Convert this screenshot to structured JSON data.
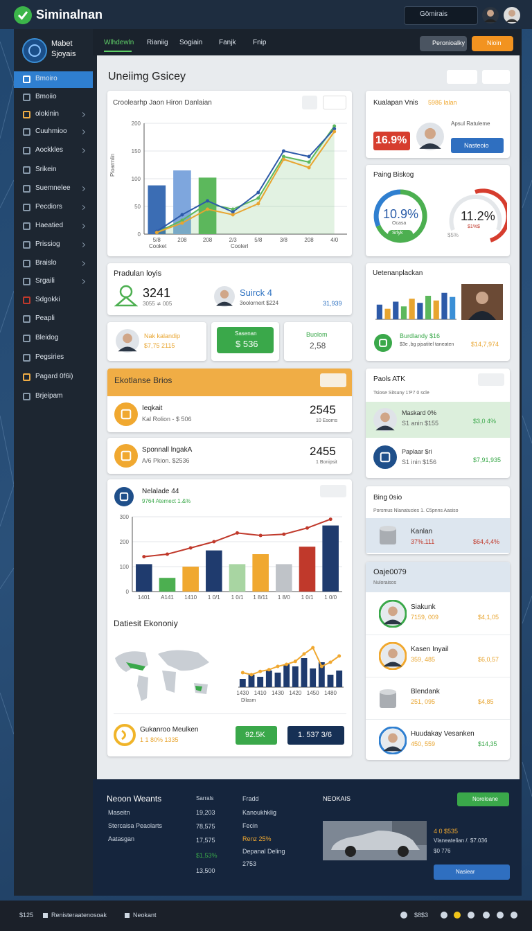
{
  "header": {
    "title": "Siminalnan",
    "search": "Gömirais"
  },
  "sidebar": {
    "brand_line1": "Mabet",
    "brand_line2": "Sjoyais",
    "items": [
      "Bmoiro",
      "Bmoiio",
      "olokinin",
      "Cuuhmioo",
      "Aockkles",
      "Srikein",
      "Suemnelee",
      "Pecdiors",
      "Haeatied",
      "Prissiog",
      "Braislo",
      "Srgaili",
      "Sdgokki",
      "Peapli",
      "Bleidog",
      "Pegsiries",
      "Pagard 0f6i)",
      "Brjeipam"
    ]
  },
  "nav": {
    "tabs": [
      "Wlhdewln",
      "Rianiig",
      "Sogiain",
      "Fanjk",
      "Fnip"
    ],
    "button_secondary": "Peronioalky",
    "button_primary": "Nioin"
  },
  "page_title": "Uneiimg Gsicey",
  "main_chart": {
    "type": "bar-line",
    "title": "Croolearhp Jaon Hiron Danlaian",
    "y_label": "Ploarmlin",
    "x_notes": [
      "Cooket",
      "Coolerl"
    ],
    "categories": [
      "5/8",
      "208",
      "208",
      "2/3",
      "5/8",
      "3/8",
      "208",
      "4/0"
    ],
    "ylim": [
      0,
      200
    ],
    "yticks": [
      0,
      50,
      100,
      150,
      200
    ],
    "grid": true,
    "series": [
      {
        "type": "bar",
        "colors": [
          "#3b6db4",
          "#7ea6dd",
          "#5cb85c",
          null,
          null,
          null,
          null,
          null
        ],
        "values": [
          88,
          115,
          102,
          null,
          null,
          null,
          null,
          null
        ]
      },
      {
        "type": "line",
        "color": "#5cb85c",
        "area": true,
        "values": [
          3,
          25,
          55,
          45,
          65,
          140,
          130,
          195
        ]
      },
      {
        "type": "line",
        "color": "#2d5aa8",
        "values": [
          5,
          35,
          60,
          40,
          75,
          150,
          140,
          190
        ]
      },
      {
        "type": "line",
        "color": "#e8a530",
        "values": [
          3,
          20,
          45,
          35,
          55,
          135,
          120,
          185
        ]
      }
    ]
  },
  "right_card1": {
    "title": "Kualapan Vnis",
    "highlight": "5986 lalan",
    "badge": "16.9%",
    "note": "Apsul Ratuleme",
    "button": "Nasteoio"
  },
  "gauges_card": {
    "title": "Paing Biskog",
    "gauge1": {
      "value_text": "10.9%",
      "sub": "Ocasa",
      "foot": "Srlyk"
    },
    "gauge2": {
      "value_text": "11.2%",
      "sub": "$1%$",
      "foot": "$5%"
    }
  },
  "production": {
    "title": "Pradulan loyis",
    "count": "3241",
    "count_sub": "3055 ≭ 005",
    "person": "Suirck 4",
    "person_sub": "3oolornert $224",
    "total": "31,939"
  },
  "mini_cards": {
    "first": {
      "name": "Nak kalandip",
      "value": "$7,75 2115"
    },
    "second": {
      "label": "Sasenan",
      "value": "$ 536"
    },
    "third": {
      "label": "Buolom",
      "value": "2,58"
    }
  },
  "team_card": {
    "title": "Uetenanplackan",
    "chart": {
      "type": "bar",
      "ylim": [
        0,
        60
      ],
      "series": [
        {
          "type": "bar",
          "colors": [
            "#2d5aa8",
            "#e8a530",
            "#2d5aa8",
            "#5cb85c",
            "#e8a530",
            "#2d5aa8",
            "#5cb85c",
            "#e8a530",
            "#2d5aa8",
            "#3b8fd6"
          ],
          "values": [
            25,
            18,
            30,
            22,
            35,
            28,
            40,
            32,
            45,
            38
          ]
        }
      ]
    },
    "item": "Burdlandy $16",
    "item_sub": "$3e ,bg pjsatitel taneaten",
    "amount": "$14,7,974"
  },
  "economy": {
    "title": "Ekotlanse Brios",
    "rows": [
      {
        "name": "Ieqkait",
        "sub": "Kal Rolion - $ 506",
        "value": "2545",
        "value_sub": "10 Esoms"
      },
      {
        "name": "Sponnall lngakA",
        "sub": "A/6 Pkion. $2536",
        "value": "2455",
        "value_sub": "1 Bonipsit"
      }
    ]
  },
  "pools": {
    "title": "Paols ATK",
    "sub": "Tsiose Sitsuny  1'P7 0 scle",
    "rows": [
      {
        "name": "Maskard 0%",
        "sub": "S1 anin $155",
        "value": "$3,0 4%"
      },
      {
        "name": "Paplaar $ri",
        "sub": "S1 inin $156",
        "value": "$7,91,935"
      }
    ]
  },
  "chart2": {
    "type": "bar-line",
    "title": "Nelalade 44",
    "subtitle": "9764 Atemect 1.&%",
    "categories": [
      "1401",
      "A141",
      "1410",
      "1 0/1",
      "1 0/1",
      "1 8/11",
      "1 8/0",
      "1 0/1",
      "1 0/0"
    ],
    "ylim": [
      0,
      300
    ],
    "yticks": [
      0,
      100,
      200,
      300
    ],
    "grid": true,
    "series": [
      {
        "type": "bar",
        "colors": [
          "#1f3b6e",
          "#4caf50",
          "#f0a830",
          "#1f3b6e",
          "#a8d5a2",
          "#f0a830",
          "#bfc3c8",
          "#c0392b",
          "#1f3b6e"
        ],
        "values": [
          110,
          55,
          100,
          165,
          110,
          150,
          110,
          180,
          265
        ]
      },
      {
        "type": "line",
        "color": "#c0392b",
        "markers": true,
        "values": [
          140,
          150,
          175,
          200,
          235,
          225,
          230,
          255,
          290
        ]
      }
    ]
  },
  "dataset": {
    "title": "Datiesit Ekononiy",
    "map_note": "Dllasm",
    "chart": {
      "type": "bar-line",
      "categories": [
        "1430",
        null,
        "1410",
        null,
        "1430",
        null,
        "1420",
        null,
        "1450",
        null,
        "1480",
        null
      ],
      "ylim": [
        0,
        100
      ],
      "series": [
        {
          "type": "bar",
          "color": "#1f3b6e",
          "values": [
            20,
            30,
            25,
            40,
            35,
            55,
            50,
            70,
            45,
            60,
            30,
            40
          ]
        },
        {
          "type": "line",
          "color": "#f0a830",
          "markers": true,
          "values": [
            35,
            30,
            38,
            42,
            50,
            55,
            62,
            80,
            95,
            50,
            60,
            75
          ]
        }
      ]
    },
    "item": "Gukanroo Meulken",
    "item_sub": "1 1 80% 1335",
    "button1": "92.5K",
    "button2": "1. 537 3/6"
  },
  "bing": {
    "title": "Bing 0sio",
    "sub": "Porsmus Nlanatucies  1. C5pnns Aasiso",
    "item": "Kanlan",
    "item_sub": "37%.111",
    "value": "$64,4,4%"
  },
  "oaje": {
    "title": "Oaje0079",
    "sub": "Nuloraisos",
    "rows": [
      {
        "name": "Siakunk",
        "sub": "7159, 009",
        "value": "$4,1,05"
      },
      {
        "name": "Kasen Inyail",
        "sub": "359, 485",
        "value": "$6,0,57"
      },
      {
        "name": "Blendank",
        "sub": "251, 095",
        "value": "$4,85"
      },
      {
        "name": "Huudakay Vesanken",
        "sub": "450, 559",
        "value": "$14,35"
      }
    ]
  },
  "footer": {
    "title": "Neoon Weants",
    "labels": [
      "Maseitn",
      "Stercaisa Peaolarts",
      "Aatasgan"
    ],
    "values_header": "Sarrals",
    "values": [
      "19,203",
      "78,575",
      "17,575",
      "$1,53%",
      "13,500"
    ],
    "links": [
      "Fradd",
      "Kanoukhklig",
      "Fecin",
      "Renz 25%",
      "Depanal Deling",
      "2753"
    ],
    "promo_title": "NEOKAIS",
    "promo_button": "Noreloane",
    "promo_price": "4 0 $535",
    "promo_sub": "Vlaneatelian /.  $7.036",
    "promo_sub2": "$0 776",
    "promo_action": "Nasiear"
  },
  "bottom_bar": {
    "left": "$125",
    "left_text": "Renisteraatenosoak",
    "middle": "Neokant",
    "right": "$8$3"
  }
}
